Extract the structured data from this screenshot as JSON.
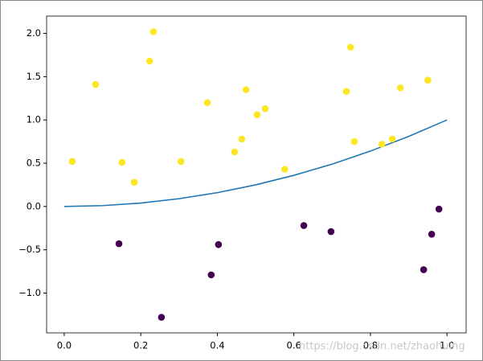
{
  "chart_data": {
    "type": "scatter",
    "xlim": [
      -0.046,
      1.05
    ],
    "ylim": [
      -1.46,
      2.2
    ],
    "xticks": [
      {
        "value": 0,
        "label": "0.0"
      },
      0.2,
      0.4,
      0.6,
      0.8,
      {
        "value": 1,
        "label": "1.0"
      }
    ],
    "yticks": [
      {
        "value": -1,
        "label": "−1.0"
      },
      {
        "value": -0.5,
        "label": "−0.5"
      },
      {
        "value": 0,
        "label": "0.0"
      },
      0.5,
      {
        "value": 1,
        "label": "1.0"
      },
      1.5,
      {
        "value": 2,
        "label": "2.0"
      }
    ],
    "grid": false,
    "watermark": "https://blog.csdn.net/zhaohuing",
    "series": [
      {
        "type": "scatter",
        "color": "#fde725",
        "x": [
          0.021,
          0.082,
          0.151,
          0.183,
          0.223,
          0.233,
          0.305,
          0.374,
          0.445,
          0.464,
          0.475,
          0.504,
          0.525,
          0.576,
          0.737,
          0.748,
          0.758,
          0.83,
          0.857,
          0.878,
          0.95
        ],
        "values": [
          0.52,
          1.41,
          0.51,
          0.28,
          1.68,
          2.02,
          0.52,
          1.2,
          0.63,
          0.78,
          1.35,
          1.06,
          1.13,
          0.43,
          1.33,
          1.84,
          0.75,
          0.72,
          0.78,
          1.37,
          1.46
        ]
      },
      {
        "type": "scatter",
        "color": "#440154",
        "x": [
          0.143,
          0.254,
          0.384,
          0.403,
          0.626,
          0.697,
          0.939,
          0.96,
          0.979
        ],
        "values": [
          -0.43,
          -1.28,
          -0.79,
          -0.44,
          -0.22,
          -0.29,
          -0.73,
          -0.32,
          -0.03
        ]
      },
      {
        "type": "line",
        "color": "#1f77b4",
        "x": [
          0,
          0.1,
          0.2,
          0.3,
          0.4,
          0.5,
          0.6,
          0.7,
          0.8,
          0.9,
          1.0
        ],
        "values": [
          0,
          0.01,
          0.04,
          0.09,
          0.16,
          0.25,
          0.36,
          0.49,
          0.64,
          0.81,
          1.0
        ]
      }
    ]
  }
}
